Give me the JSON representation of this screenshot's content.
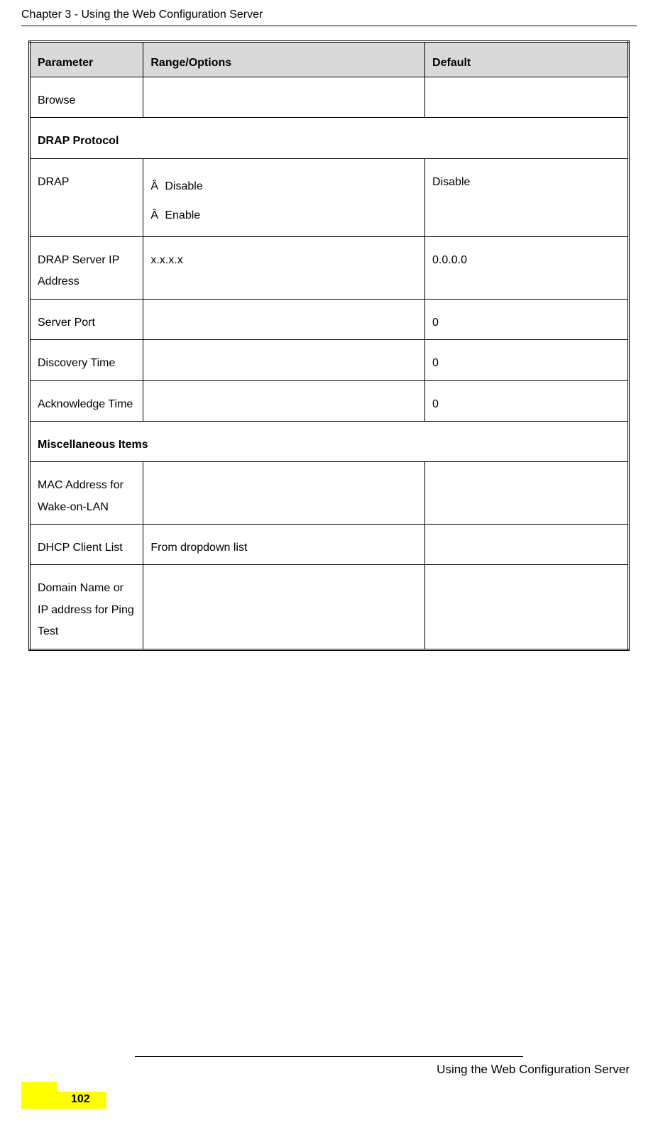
{
  "header": {
    "chapter_title": "Chapter 3 - Using the Web Configuration Server"
  },
  "table": {
    "headers": {
      "parameter": "Parameter",
      "range": "Range/Options",
      "default": "Default"
    },
    "rows": {
      "browse": {
        "param": "Browse",
        "range": "",
        "default": ""
      },
      "drap_protocol_section": "DRAP Protocol",
      "drap": {
        "param": "DRAP",
        "option1": "Disable",
        "option2": "Enable",
        "default": "Disable"
      },
      "drap_server": {
        "param": "DRAP Server IP Address",
        "range": "x.x.x.x",
        "default": "0.0.0.0"
      },
      "server_port": {
        "param": "Server Port",
        "range": "",
        "default": "0"
      },
      "discovery_time": {
        "param": "Discovery Time",
        "range": "",
        "default": "0"
      },
      "ack_time": {
        "param": "Acknowledge Time",
        "range": "",
        "default": "0"
      },
      "misc_section": "Miscellaneous Items",
      "mac_address": {
        "param": "MAC Address for Wake-on-LAN",
        "range": "",
        "default": ""
      },
      "dhcp_client": {
        "param": "DHCP Client List",
        "range": "From dropdown list",
        "default": ""
      },
      "domain_name": {
        "param": "Domain Name or IP address for Ping Test",
        "range": "",
        "default": ""
      }
    }
  },
  "footer": {
    "section_title": "Using the Web Configuration Server",
    "page_number": "102"
  },
  "styling": {
    "header_bg": "#d9d9d9",
    "highlight_color": "#ffff00",
    "border_color": "#000000",
    "text_color": "#000000",
    "background_color": "#ffffff",
    "body_fontsize": 16,
    "footer_fontsize": 17
  }
}
